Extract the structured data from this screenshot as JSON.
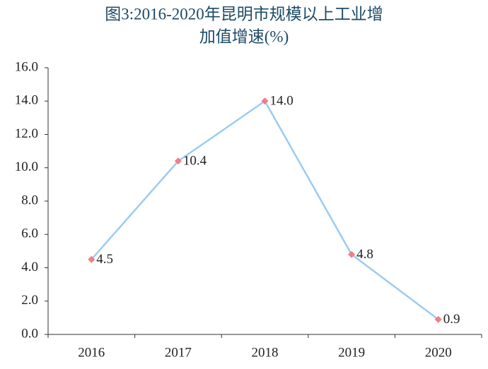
{
  "chart_data": {
    "type": "line",
    "title": [
      "图3:2016-2020年昆明市规模以上工业增",
      "加值增速(%)"
    ],
    "categories": [
      "2016",
      "2017",
      "2018",
      "2019",
      "2020"
    ],
    "values": [
      4.5,
      10.4,
      14,
      4.8,
      0.9
    ],
    "value_labels": [
      "4.5",
      "10.4",
      "14.0",
      "4.8",
      "0.9"
    ],
    "color": "#9dcbf2",
    "marker_color": "#f07f86",
    "ylim": [
      0,
      16
    ],
    "yticks": [
      {
        "value": 0,
        "label": "0.0"
      },
      {
        "value": 2,
        "label": "2.0"
      },
      {
        "value": 4,
        "label": "4.0"
      },
      {
        "value": 6,
        "label": "6.0"
      },
      {
        "value": 8,
        "label": "8.0"
      },
      {
        "value": 10,
        "label": "10.0"
      },
      {
        "value": 12,
        "label": "12.0"
      },
      {
        "value": 14,
        "label": "14.0"
      },
      {
        "value": 16,
        "label": "16.0"
      }
    ],
    "grid": false
  }
}
